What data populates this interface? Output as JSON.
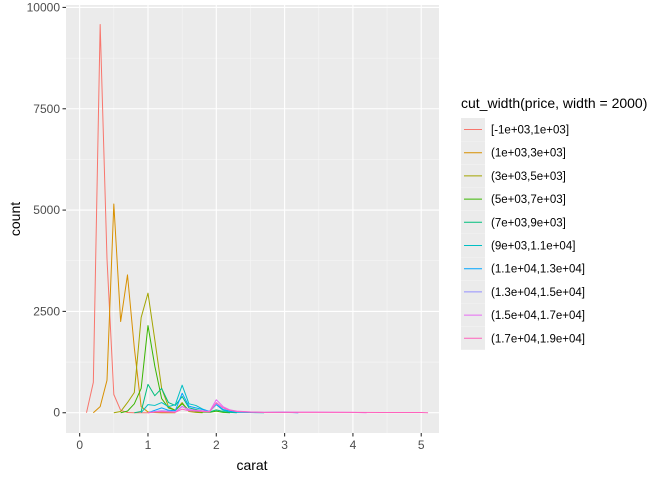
{
  "chart_data": {
    "type": "line",
    "subtype": "frequency-polygon",
    "xlabel": "carat",
    "ylabel": "count",
    "xlim": [
      -0.2,
      5.26
    ],
    "ylim": [
      -500,
      10060
    ],
    "x_ticks": [
      0,
      1,
      2,
      3,
      4,
      5
    ],
    "x_tick_labels": [
      "0",
      "1",
      "2",
      "3",
      "4",
      "5"
    ],
    "y_ticks": [
      0,
      2500,
      5000,
      7500,
      10000
    ],
    "y_tick_labels": [
      "0",
      "2500",
      "5000",
      "7500",
      "10000"
    ],
    "grid": true,
    "legend": {
      "title": "cut_width(price, width = 2000)",
      "position": "right"
    },
    "series": [
      {
        "name": "[-1e+03,1e+03]",
        "color": "#F8766D",
        "x": [
          0.1,
          0.2,
          0.3,
          0.4,
          0.5,
          0.6,
          0.7,
          0.8,
          0.9,
          1.0
        ],
        "y": [
          0,
          750,
          9580,
          3800,
          450,
          60,
          5,
          0,
          0,
          0
        ]
      },
      {
        "name": "(1e+03,3e+03]",
        "color": "#D89000",
        "x": [
          0.2,
          0.3,
          0.4,
          0.5,
          0.6,
          0.7,
          0.8,
          0.9,
          1.0,
          1.1,
          1.2,
          1.3,
          1.4
        ],
        "y": [
          0,
          150,
          800,
          5150,
          2250,
          3400,
          1600,
          150,
          20,
          5,
          0,
          0,
          0
        ]
      },
      {
        "name": "(3e+03,5e+03]",
        "color": "#A3A500",
        "x": [
          0.5,
          0.6,
          0.7,
          0.8,
          0.9,
          1.0,
          1.1,
          1.2,
          1.3,
          1.4,
          1.5,
          1.6,
          1.7,
          1.8
        ],
        "y": [
          0,
          30,
          250,
          500,
          2350,
          2950,
          1800,
          600,
          150,
          60,
          250,
          30,
          10,
          0
        ]
      },
      {
        "name": "(5e+03,7e+03]",
        "color": "#39B600",
        "x": [
          0.6,
          0.7,
          0.8,
          0.9,
          1.0,
          1.1,
          1.2,
          1.3,
          1.4,
          1.5,
          1.6,
          1.7,
          1.8,
          1.9,
          2.0,
          2.1,
          2.2
        ],
        "y": [
          0,
          40,
          220,
          600,
          2150,
          1150,
          350,
          120,
          60,
          220,
          60,
          30,
          15,
          10,
          40,
          10,
          0
        ]
      },
      {
        "name": "(7e+03,9e+03]",
        "color": "#00BF7D",
        "x": [
          0.8,
          0.9,
          1.0,
          1.1,
          1.2,
          1.3,
          1.4,
          1.5,
          1.6,
          1.7,
          1.8,
          1.9,
          2.0,
          2.1,
          2.2,
          2.3
        ],
        "y": [
          0,
          30,
          700,
          420,
          600,
          250,
          180,
          400,
          120,
          80,
          40,
          20,
          70,
          30,
          10,
          0
        ]
      },
      {
        "name": "(9e+03,1.1e+04]",
        "color": "#00BFC4",
        "x": [
          0.9,
          1.0,
          1.1,
          1.2,
          1.3,
          1.4,
          1.5,
          1.6,
          1.7,
          1.8,
          1.9,
          2.0,
          2.1,
          2.2,
          2.3,
          2.5,
          2.7
        ],
        "y": [
          0,
          200,
          180,
          250,
          150,
          200,
          680,
          220,
          180,
          90,
          30,
          200,
          60,
          30,
          10,
          5,
          0
        ]
      },
      {
        "name": "(1.1e+04,1.3e+04]",
        "color": "#00A5FF",
        "x": [
          1.0,
          1.1,
          1.2,
          1.3,
          1.4,
          1.5,
          1.6,
          1.7,
          1.8,
          1.9,
          2.0,
          2.1,
          2.2,
          2.3,
          2.5,
          2.7,
          3.0,
          3.2
        ],
        "y": [
          0,
          60,
          120,
          60,
          50,
          480,
          160,
          120,
          80,
          30,
          210,
          80,
          40,
          20,
          10,
          5,
          15,
          0
        ]
      },
      {
        "name": "(1.3e+04,1.5e+04]",
        "color": "#9590FF",
        "x": [
          1.0,
          1.1,
          1.2,
          1.3,
          1.4,
          1.5,
          1.6,
          1.7,
          1.8,
          1.9,
          2.0,
          2.1,
          2.2,
          2.3,
          2.5,
          2.7,
          3.0,
          3.2
        ],
        "y": [
          0,
          30,
          50,
          40,
          20,
          160,
          60,
          50,
          30,
          20,
          220,
          120,
          60,
          30,
          15,
          10,
          10,
          0
        ]
      },
      {
        "name": "(1.5e+04,1.7e+04]",
        "color": "#E76BF3",
        "x": [
          1.0,
          1.1,
          1.2,
          1.3,
          1.4,
          1.5,
          1.6,
          1.7,
          1.8,
          1.9,
          2.0,
          2.1,
          2.2,
          2.3,
          2.5,
          2.7,
          3.0,
          3.5,
          4.0,
          4.2
        ],
        "y": [
          0,
          20,
          40,
          20,
          15,
          150,
          80,
          60,
          50,
          30,
          320,
          150,
          70,
          40,
          20,
          10,
          15,
          15,
          10,
          0
        ]
      },
      {
        "name": "(1.7e+04,1.9e+04]",
        "color": "#FF62BC",
        "x": [
          1.0,
          1.1,
          1.2,
          1.3,
          1.4,
          1.5,
          1.6,
          1.7,
          1.8,
          1.9,
          2.0,
          2.1,
          2.2,
          2.3,
          2.5,
          2.7,
          3.0,
          3.5,
          4.0,
          4.5,
          5.0,
          5.1
        ],
        "y": [
          0,
          15,
          20,
          15,
          10,
          90,
          50,
          40,
          30,
          20,
          250,
          120,
          60,
          30,
          15,
          10,
          10,
          10,
          10,
          5,
          5,
          0
        ]
      }
    ]
  }
}
